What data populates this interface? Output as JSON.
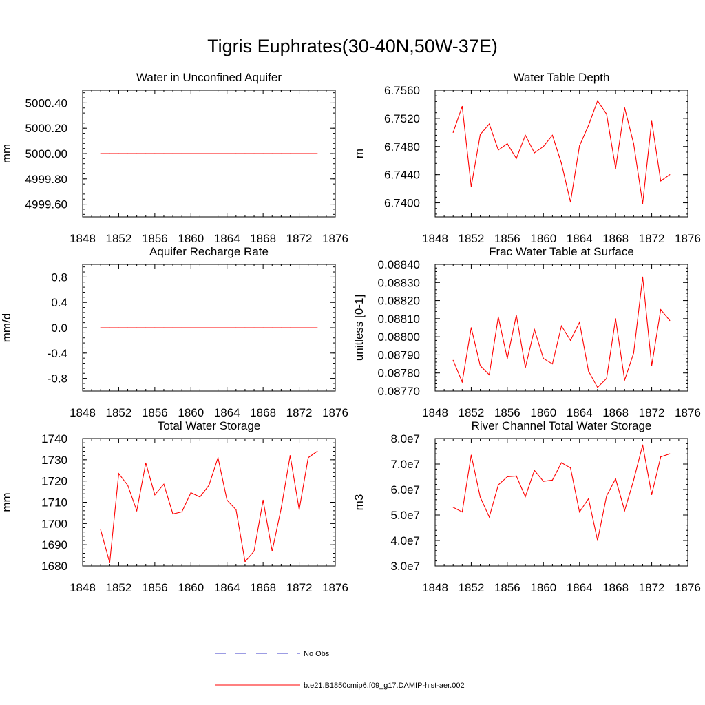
{
  "title": "Tigris Euphrates(30-40N,50W-37E)",
  "colors": {
    "model": "#ff0000",
    "obs": "#3b3bc9",
    "axes": "#000000"
  },
  "legend": [
    {
      "label": "No Obs",
      "style": "dashed",
      "color": "#3b3bc9"
    },
    {
      "label": "b.e21.B1850cmip6.f09_g17.DAMIP-hist-aer.002",
      "style": "solid",
      "color": "#ff0000"
    }
  ],
  "chart_data": [
    {
      "type": "line",
      "title": "Water in Unconfined Aquifer",
      "ylabel": "mm",
      "xlim": [
        1848,
        1876
      ],
      "ylim": [
        4999.5,
        5000.5
      ],
      "xticks": [
        "1848",
        "1852",
        "1856",
        "1860",
        "1864",
        "1868",
        "1872",
        "1876"
      ],
      "yticks": [
        4999.6,
        4999.8,
        5000.0,
        5000.2,
        5000.4
      ],
      "yticklabels": [
        "4999.60",
        "4999.80",
        "5000.00",
        "5000.20",
        "5000.40"
      ],
      "x": [
        1850,
        1851,
        1852,
        1853,
        1854,
        1855,
        1856,
        1857,
        1858,
        1859,
        1860,
        1861,
        1862,
        1863,
        1864,
        1865,
        1866,
        1867,
        1868,
        1869,
        1870,
        1871,
        1872,
        1873,
        1874
      ],
      "series": [
        {
          "values": [
            5000,
            5000,
            5000,
            5000,
            5000,
            5000,
            5000,
            5000,
            5000,
            5000,
            5000,
            5000,
            5000,
            5000,
            5000,
            5000,
            5000,
            5000,
            5000,
            5000,
            5000,
            5000,
            5000,
            5000,
            5000
          ]
        }
      ]
    },
    {
      "type": "line",
      "title": "Water Table Depth",
      "ylabel": "m",
      "xlim": [
        1848,
        1876
      ],
      "ylim": [
        6.738,
        6.756
      ],
      "xticks": [
        "1848",
        "1852",
        "1856",
        "1860",
        "1864",
        "1868",
        "1872",
        "1876"
      ],
      "yticks": [
        6.74,
        6.744,
        6.748,
        6.752,
        6.756
      ],
      "yticklabels": [
        "6.7400",
        "6.7440",
        "6.7480",
        "6.7520",
        "6.7560"
      ],
      "x": [
        1850,
        1851,
        1852,
        1853,
        1854,
        1855,
        1856,
        1857,
        1858,
        1859,
        1860,
        1861,
        1862,
        1863,
        1864,
        1865,
        1866,
        1867,
        1868,
        1869,
        1870,
        1871,
        1872,
        1873,
        1874
      ],
      "series": [
        {
          "values": [
            6.75,
            6.7537,
            6.7423,
            6.7497,
            6.7512,
            6.7475,
            6.7484,
            6.7463,
            6.7496,
            6.7471,
            6.748,
            6.7496,
            6.7456,
            6.7401,
            6.7481,
            6.751,
            6.7545,
            6.7526,
            6.7449,
            6.7535,
            6.7484,
            6.7399,
            6.7516,
            6.7431,
            6.744
          ]
        }
      ]
    },
    {
      "type": "line",
      "title": "Aquifer Recharge Rate",
      "ylabel": "mm/d",
      "xlim": [
        1848,
        1876
      ],
      "ylim": [
        -1.0,
        1.0
      ],
      "xticks": [
        "1848",
        "1852",
        "1856",
        "1860",
        "1864",
        "1868",
        "1872",
        "1876"
      ],
      "yticks": [
        -0.8,
        -0.4,
        0.0,
        0.4,
        0.8
      ],
      "yticklabels": [
        "-0.8",
        "-0.4",
        "0.0",
        "0.4",
        "0.8"
      ],
      "x": [
        1850,
        1851,
        1852,
        1853,
        1854,
        1855,
        1856,
        1857,
        1858,
        1859,
        1860,
        1861,
        1862,
        1863,
        1864,
        1865,
        1866,
        1867,
        1868,
        1869,
        1870,
        1871,
        1872,
        1873,
        1874
      ],
      "series": [
        {
          "values": [
            0,
            0,
            0,
            0,
            0,
            0,
            0,
            0,
            0,
            0,
            0,
            0,
            0,
            0,
            0,
            0,
            0,
            0,
            0,
            0,
            0,
            0,
            0,
            0,
            0
          ]
        }
      ]
    },
    {
      "type": "line",
      "title": "Frac Water Table at Surface",
      "ylabel": "unitless [0-1]",
      "xlim": [
        1848,
        1876
      ],
      "ylim": [
        0.0877,
        0.0884
      ],
      "xticks": [
        "1848",
        "1852",
        "1856",
        "1860",
        "1864",
        "1868",
        "1872",
        "1876"
      ],
      "yticks": [
        0.0877,
        0.0878,
        0.0879,
        0.088,
        0.0881,
        0.0882,
        0.0883,
        0.0884
      ],
      "yticklabels": [
        "0.08770",
        "0.08780",
        "0.08790",
        "0.08800",
        "0.08810",
        "0.08820",
        "0.08830",
        "0.08840"
      ],
      "x": [
        1850,
        1851,
        1852,
        1853,
        1854,
        1855,
        1856,
        1857,
        1858,
        1859,
        1860,
        1861,
        1862,
        1863,
        1864,
        1865,
        1866,
        1867,
        1868,
        1869,
        1870,
        1871,
        1872,
        1873,
        1874
      ],
      "series": [
        {
          "values": [
            0.08787,
            0.08775,
            0.08805,
            0.08784,
            0.08779,
            0.08811,
            0.08788,
            0.08812,
            0.08783,
            0.08804,
            0.08788,
            0.08785,
            0.08806,
            0.08798,
            0.08808,
            0.08781,
            0.08772,
            0.08777,
            0.0881,
            0.08776,
            0.08791,
            0.08833,
            0.08784,
            0.08815,
            0.08809
          ]
        }
      ]
    },
    {
      "type": "line",
      "title": "Total Water Storage",
      "ylabel": "mm",
      "xlim": [
        1848,
        1876
      ],
      "ylim": [
        1680,
        1740
      ],
      "xticks": [
        "1848",
        "1852",
        "1856",
        "1860",
        "1864",
        "1868",
        "1872",
        "1876"
      ],
      "yticks": [
        1680,
        1690,
        1700,
        1710,
        1720,
        1730,
        1740
      ],
      "yticklabels": [
        "1680",
        "1690",
        "1700",
        "1710",
        "1720",
        "1730",
        "1740"
      ],
      "x": [
        1850,
        1851,
        1852,
        1853,
        1854,
        1855,
        1856,
        1857,
        1858,
        1859,
        1860,
        1861,
        1862,
        1863,
        1864,
        1865,
        1866,
        1867,
        1868,
        1869,
        1870,
        1871,
        1872,
        1873,
        1874
      ],
      "series": [
        {
          "values": [
            1697,
            1681.5,
            1723.5,
            1718,
            1706,
            1728.5,
            1713.5,
            1718.5,
            1704.5,
            1705.5,
            1714.5,
            1712.5,
            1718,
            1731,
            1711,
            1706.5,
            1682,
            1687,
            1711,
            1687,
            1707,
            1732,
            1706.5,
            1731,
            1734
          ]
        }
      ]
    },
    {
      "type": "line",
      "title": "River Channel Total Water Storage",
      "ylabel": "m3",
      "xlim": [
        1848,
        1876
      ],
      "ylim": [
        30000000,
        80000000
      ],
      "xticks": [
        "1848",
        "1852",
        "1856",
        "1860",
        "1864",
        "1868",
        "1872",
        "1876"
      ],
      "yticks": [
        30000000,
        40000000,
        50000000,
        60000000,
        70000000,
        80000000
      ],
      "yticklabels": [
        "3.0e7",
        "4.0e7",
        "5.0e7",
        "6.0e7",
        "7.0e7",
        "8.0e7"
      ],
      "x": [
        1850,
        1851,
        1852,
        1853,
        1854,
        1855,
        1856,
        1857,
        1858,
        1859,
        1860,
        1861,
        1862,
        1863,
        1864,
        1865,
        1866,
        1867,
        1868,
        1869,
        1870,
        1871,
        1872,
        1873,
        1874
      ],
      "series": [
        {
          "values": [
            53000000,
            51200000,
            73500000,
            57000000,
            49200000,
            61800000,
            65000000,
            65300000,
            57200000,
            67500000,
            63200000,
            63700000,
            70500000,
            68500000,
            51200000,
            56400000,
            40000000,
            57500000,
            64200000,
            51700000,
            63700000,
            77500000,
            58000000,
            72800000,
            74000000
          ]
        }
      ]
    }
  ]
}
